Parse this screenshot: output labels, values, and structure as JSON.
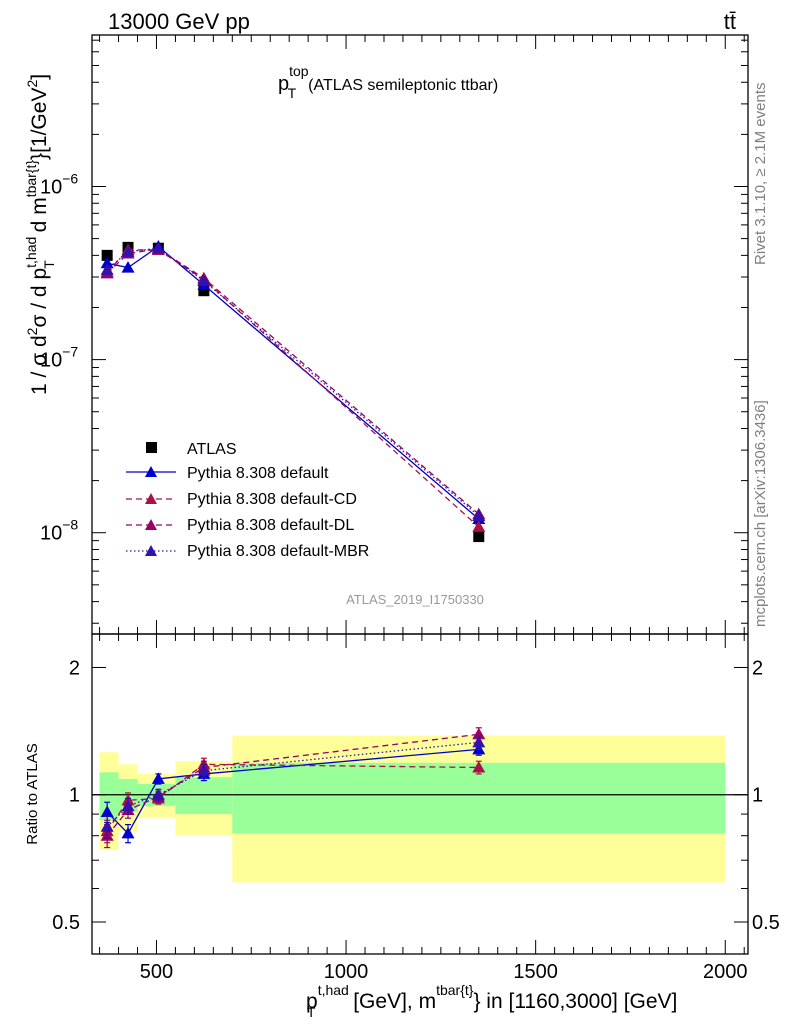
{
  "header": {
    "left": "13000 GeV pp",
    "right": "tt̄"
  },
  "plot_title": {
    "main": "p",
    "sup": "top",
    "sub": "T",
    "rest": "(ATLAS semileptonic ttbar)"
  },
  "watermarks": {
    "rivet": "Rivet 3.1.10, ≥ 2.1M events",
    "mcplots": "mcplots.cern.ch [arXiv:1306.3436]",
    "analysis": "ATLAS_2019_I1750330"
  },
  "y_main_label": {
    "p1": "1 / σ d",
    "s1": "2",
    "p2": "σ / d p",
    "s2": "t,had",
    "b2": "T",
    "p3": " d m",
    "s3": "tbar{t}",
    "p4": "}[1/GeV",
    "s4": "2",
    "p5": "]"
  },
  "y_ratio_label": "Ratio to ATLAS",
  "x_label": {
    "p1": "p",
    "s1": "t,had",
    "b1": "T",
    "p2": " [GeV], m",
    "s2": "tbar{t}",
    "p3": "} in [1160,3000] [GeV]"
  },
  "ticks": {
    "main_y": [
      {
        "v": 1e-06,
        "base": "10",
        "exp": "−6"
      },
      {
        "v": 1e-07,
        "base": "10",
        "exp": "−7"
      },
      {
        "v": 1e-08,
        "base": "10",
        "exp": "−8"
      }
    ],
    "ratio_y": [
      {
        "v": 2,
        "label": "2"
      },
      {
        "v": 1,
        "label": "1"
      },
      {
        "v": 0.5,
        "label": "0.5"
      }
    ],
    "x": [
      {
        "v": 500,
        "label": "500"
      },
      {
        "v": 1000,
        "label": "1000"
      },
      {
        "v": 1500,
        "label": "1500"
      },
      {
        "v": 2000,
        "label": "2000"
      }
    ]
  },
  "chart_data": {
    "type": "line",
    "x_scale": "linear",
    "y_scale_main": "log",
    "y_scale_ratio": "log",
    "xlim": [
      330,
      2060
    ],
    "ylim_main": [
      2.6e-09,
      7.5e-06
    ],
    "ylim_ratio": [
      0.42,
      2.4
    ],
    "x": [
      370,
      425,
      505,
      625,
      1350
    ],
    "x_edges": [
      350,
      400,
      450,
      550,
      700,
      2000
    ],
    "series": [
      {
        "name": "ATLAS",
        "style": "data",
        "color": "#000000",
        "values": [
          4e-07,
          4.45e-07,
          4.4e-07,
          2.5e-07,
          9.5e-09
        ],
        "band_inner": [
          0.13,
          0.09,
          0.06,
          0.1,
          0.19
        ],
        "band_outer": [
          0.26,
          0.18,
          0.12,
          0.2,
          0.38
        ]
      },
      {
        "name": "Pythia 8.308 default",
        "style": "solid",
        "color": "#0000cc",
        "values": [
          3.6e-07,
          3.4e-07,
          4.5e-07,
          2.7e-07,
          1.2e-08
        ],
        "ratio": [
          0.91,
          0.81,
          1.09,
          1.12,
          1.28
        ],
        "ratio_err": [
          0.05,
          0.04,
          0.03,
          0.04,
          0.04
        ]
      },
      {
        "name": "Pythia 8.308 default-CD",
        "style": "dashed",
        "color": "#aa1144",
        "values": [
          3.2e-07,
          4.3e-07,
          4.3e-07,
          2.9e-07,
          1.08e-08
        ],
        "ratio": [
          0.82,
          0.97,
          0.98,
          1.18,
          1.16
        ],
        "ratio_err": [
          0.05,
          0.04,
          0.03,
          0.04,
          0.04
        ]
      },
      {
        "name": "Pythia 8.308 default-DL",
        "style": "dashed",
        "color": "#990066",
        "values": [
          3.15e-07,
          4.1e-07,
          4.35e-07,
          2.95e-07,
          1.28e-08
        ],
        "ratio": [
          0.8,
          0.92,
          0.99,
          1.16,
          1.39
        ],
        "ratio_err": [
          0.05,
          0.04,
          0.03,
          0.04,
          0.05
        ]
      },
      {
        "name": "Pythia 8.308 default-MBR",
        "style": "dotted",
        "color": "#3311aa",
        "values": [
          3.3e-07,
          4.2e-07,
          4.4e-07,
          2.85e-07,
          1.25e-08
        ],
        "ratio": [
          0.84,
          0.94,
          1.0,
          1.14,
          1.33
        ],
        "ratio_err": [
          0.05,
          0.04,
          0.03,
          0.04,
          0.05
        ]
      }
    ]
  }
}
